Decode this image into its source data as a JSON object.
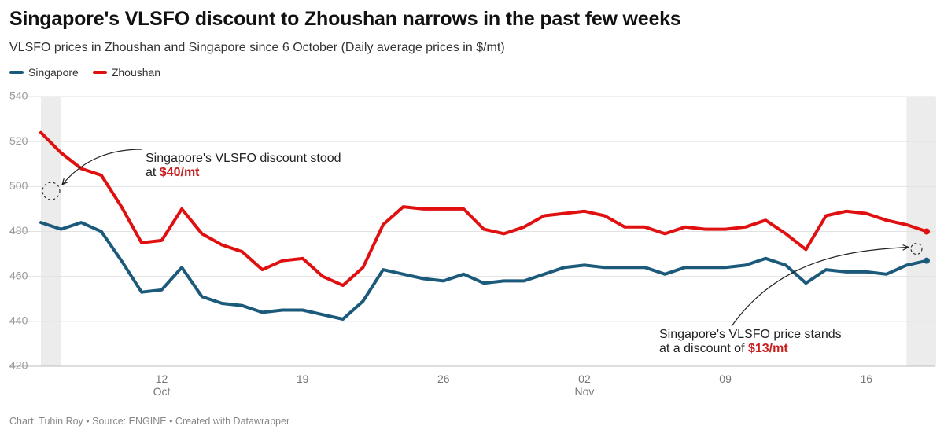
{
  "title": "Singapore's VLSFO discount to Zhoushan narrows in the past few weeks",
  "subtitle": "VLSFO prices in Zhoushan and Singapore since 6 October (Daily average prices in $/mt)",
  "footer": "Chart: Tuhin Roy • Source: ENGINE • Created with Datawrapper",
  "colors": {
    "singapore": "#1b5a7a",
    "zhoushan": "#e01010",
    "highlight": "#c91d1d",
    "grid": "#e2e2e2",
    "shade": "#ececec"
  },
  "chart_data": {
    "type": "line",
    "title": "Singapore's VLSFO discount to Zhoushan narrows in the past few weeks",
    "subtitle": "VLSFO prices in Zhoushan and Singapore since 6 October (Daily average prices in $/mt)",
    "xlabel": "",
    "ylabel": "",
    "ylim": [
      420,
      540
    ],
    "yticks": [
      420,
      440,
      460,
      480,
      500,
      520,
      540
    ],
    "grid": true,
    "legend_position": "top-left",
    "x_start": "6 Oct",
    "x_end": "19 Nov",
    "x_ticks": [
      {
        "date": "12 Oct",
        "day": "12",
        "month": "Oct"
      },
      {
        "date": "19 Oct",
        "day": "19",
        "month": ""
      },
      {
        "date": "26 Oct",
        "day": "26",
        "month": ""
      },
      {
        "date": "2 Nov",
        "day": "02",
        "month": "Nov"
      },
      {
        "date": "9 Nov",
        "day": "09",
        "month": ""
      },
      {
        "date": "16 Nov",
        "day": "16",
        "month": ""
      }
    ],
    "highlight_ranges": [
      [
        "6 Oct",
        "7 Oct"
      ],
      [
        "18 Nov",
        "19 Nov"
      ]
    ],
    "series": [
      {
        "name": "Singapore",
        "color": "#1b5a7a",
        "x": [
          "6 Oct",
          "7 Oct",
          "8 Oct",
          "9 Oct",
          "10 Oct",
          "11 Oct",
          "12 Oct",
          "13 Oct",
          "14 Oct",
          "15 Oct",
          "16 Oct",
          "17 Oct",
          "18 Oct",
          "19 Oct",
          "20 Oct",
          "21 Oct",
          "22 Oct",
          "23 Oct",
          "24 Oct",
          "25 Oct",
          "26 Oct",
          "27 Oct",
          "28 Oct",
          "29 Oct",
          "30 Oct",
          "31 Oct",
          "1 Nov",
          "2 Nov",
          "3 Nov",
          "4 Nov",
          "5 Nov",
          "6 Nov",
          "7 Nov",
          "8 Nov",
          "9 Nov",
          "10 Nov",
          "11 Nov",
          "12 Nov",
          "13 Nov",
          "14 Nov",
          "15 Nov",
          "16 Nov",
          "17 Nov",
          "18 Nov",
          "19 Nov"
        ],
        "values": [
          484,
          481,
          484,
          480,
          467,
          453,
          454,
          464,
          451,
          448,
          447,
          444,
          445,
          445,
          443,
          441,
          449,
          463,
          461,
          459,
          458,
          461,
          457,
          458,
          458,
          461,
          464,
          465,
          464,
          464,
          464,
          461,
          464,
          464,
          464,
          465,
          468,
          465,
          457,
          463,
          462,
          462,
          461,
          465,
          467
        ]
      },
      {
        "name": "Zhoushan",
        "color": "#e01010",
        "x": [
          "6 Oct",
          "7 Oct",
          "8 Oct",
          "9 Oct",
          "10 Oct",
          "11 Oct",
          "12 Oct",
          "13 Oct",
          "14 Oct",
          "15 Oct",
          "16 Oct",
          "17 Oct",
          "18 Oct",
          "19 Oct",
          "20 Oct",
          "21 Oct",
          "22 Oct",
          "23 Oct",
          "24 Oct",
          "25 Oct",
          "26 Oct",
          "27 Oct",
          "28 Oct",
          "29 Oct",
          "30 Oct",
          "31 Oct",
          "1 Nov",
          "2 Nov",
          "3 Nov",
          "4 Nov",
          "5 Nov",
          "6 Nov",
          "7 Nov",
          "8 Nov",
          "9 Nov",
          "10 Nov",
          "11 Nov",
          "12 Nov",
          "13 Nov",
          "14 Nov",
          "15 Nov",
          "16 Nov",
          "17 Nov",
          "18 Nov",
          "19 Nov"
        ],
        "values": [
          524,
          515,
          508,
          505,
          491,
          475,
          476,
          490,
          479,
          474,
          471,
          463,
          467,
          468,
          460,
          456,
          464,
          483,
          491,
          490,
          490,
          490,
          481,
          479,
          482,
          487,
          488,
          489,
          487,
          482,
          482,
          479,
          482,
          481,
          481,
          482,
          485,
          479,
          472,
          487,
          489,
          488,
          485,
          483,
          480
        ]
      }
    ],
    "annotations": [
      {
        "text": "Singapore's VLSFO discount stood",
        "text2_prefix": "at ",
        "value": "$40/mt",
        "target_date": "6 Oct",
        "target_value": 498
      },
      {
        "text": "Singapore's VLSFO price stands",
        "text2_prefix": "at a discount of ",
        "value": "$13/mt",
        "target_date": "19 Nov",
        "target_value": 473
      }
    ]
  }
}
